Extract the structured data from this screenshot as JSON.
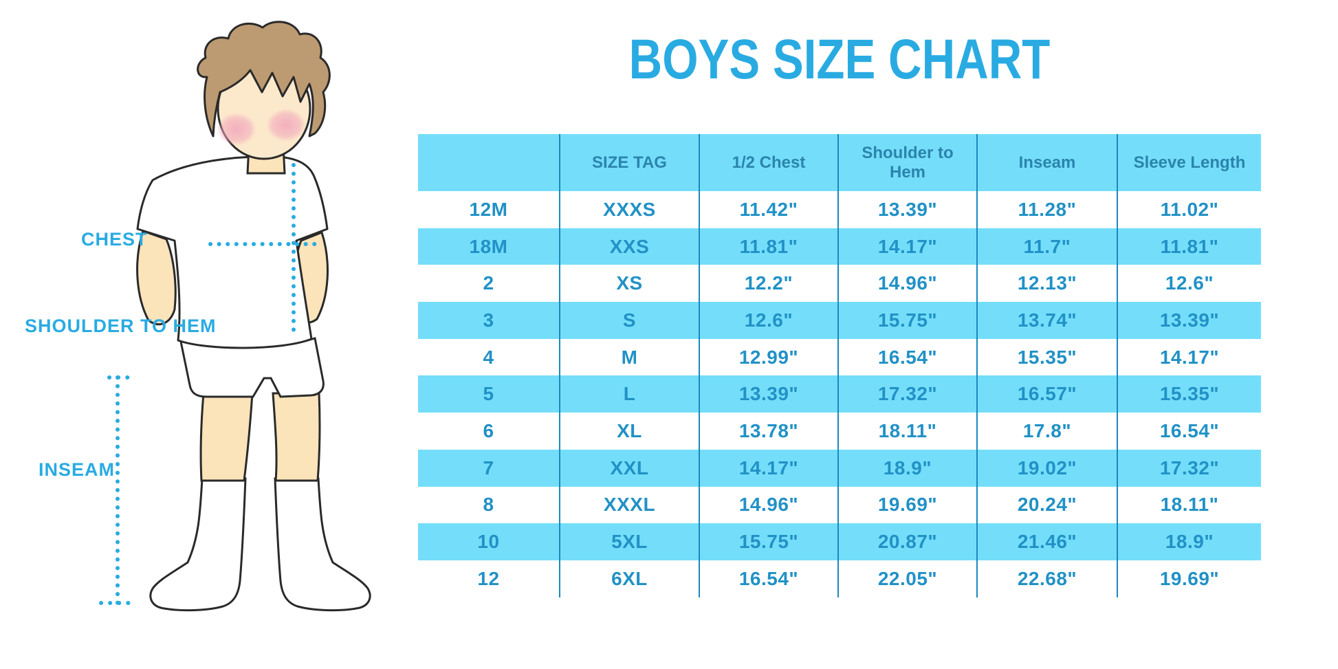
{
  "title": "BOYS SIZE CHART",
  "figure_labels": {
    "chest": "CHEST",
    "shoulder_to_hem": "SHOULDER TO HEM",
    "inseam": "INSEAM"
  },
  "illustration": {
    "description": "boy-figure-with-measurement-dotted-lines",
    "dotted_lines": [
      "chest-width-line",
      "shoulder-to-hem-line",
      "inseam-line"
    ]
  },
  "colors": {
    "accent_blue": "#29abe2",
    "row_cyan": "#74defa",
    "divider_blue": "#1b88be",
    "cell_text_blue": "#2191c6",
    "header_text_blue": "#2b84ad",
    "skin": "#fbe3ba",
    "hair_brown": "#bd9b72",
    "blush_pink": "#f2a9bd"
  },
  "chart_data": {
    "type": "table",
    "title": "BOYS SIZE CHART",
    "columns": [
      "",
      "SIZE TAG",
      "1/2 Chest",
      "Shoulder to Hem",
      "Inseam",
      "Sleeve Length"
    ],
    "rows": [
      [
        "12M",
        "XXXS",
        "11.42\"",
        "13.39\"",
        "11.28\"",
        "11.02\""
      ],
      [
        "18M",
        "XXS",
        "11.81\"",
        "14.17\"",
        "11.7\"",
        "11.81\""
      ],
      [
        "2",
        "XS",
        "12.2\"",
        "14.96\"",
        "12.13\"",
        "12.6\""
      ],
      [
        "3",
        "S",
        "12.6\"",
        "15.75\"",
        "13.74\"",
        "13.39\""
      ],
      [
        "4",
        "M",
        "12.99\"",
        "16.54\"",
        "15.35\"",
        "14.17\""
      ],
      [
        "5",
        "L",
        "13.39\"",
        "17.32\"",
        "16.57\"",
        "15.35\""
      ],
      [
        "6",
        "XL",
        "13.78\"",
        "18.11\"",
        "17.8\"",
        "16.54\""
      ],
      [
        "7",
        "XXL",
        "14.17\"",
        "18.9\"",
        "19.02\"",
        "17.32\""
      ],
      [
        "8",
        "XXXL",
        "14.96\"",
        "19.69\"",
        "20.24\"",
        "18.11\""
      ],
      [
        "10",
        "5XL",
        "15.75\"",
        "20.87\"",
        "21.46\"",
        "18.9\""
      ],
      [
        "12",
        "6XL",
        "16.54\"",
        "22.05\"",
        "22.68\"",
        "19.69\""
      ]
    ],
    "layout": {
      "striped_rows": "white/cyan alternating starting white",
      "grid": "vertical dividers only, no horizontal borders",
      "header_background": "cyan"
    }
  }
}
